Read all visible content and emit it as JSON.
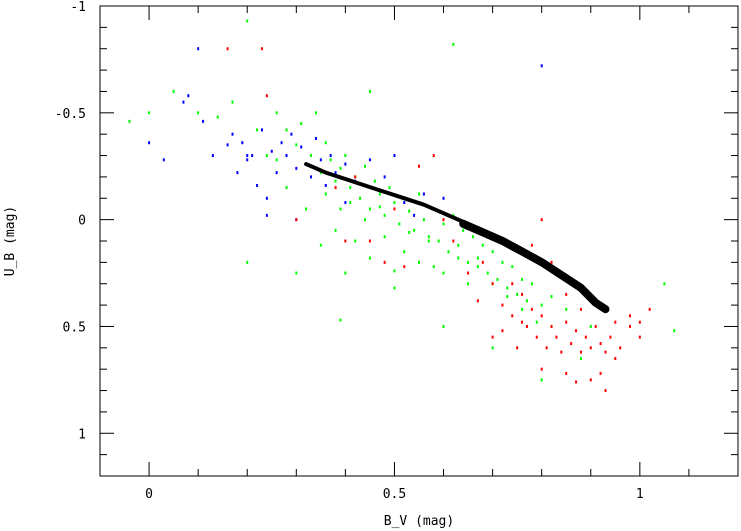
{
  "chart_data": {
    "type": "scatter",
    "title": "",
    "xlabel": "B_V (mag)",
    "ylabel": "U_B (mag)",
    "xlim": [
      -0.1,
      1.2
    ],
    "ylim": [
      1.2,
      -1.0
    ],
    "y_inverted": true,
    "grid": false,
    "x_ticks": [
      {
        "value": 0,
        "label": "0"
      },
      {
        "value": 0.5,
        "label": "0.5"
      },
      {
        "value": 1,
        "label": "1"
      }
    ],
    "y_ticks": [
      {
        "value": -1,
        "label": "-1"
      },
      {
        "value": -0.5,
        "label": "-0.5"
      },
      {
        "value": 0,
        "label": "0"
      },
      {
        "value": 0.5,
        "label": "0.5"
      },
      {
        "value": 1,
        "label": "1"
      }
    ],
    "colors": {
      "blue": "#0000ff",
      "green": "#00ff00",
      "red": "#ff0000",
      "black": "#000000"
    },
    "series": [
      {
        "color": "#00ff00",
        "points": [
          [
            -0.04,
            -0.46
          ],
          [
            0.0,
            -0.5
          ],
          [
            0.05,
            -0.6
          ],
          [
            0.1,
            -0.5
          ],
          [
            0.14,
            -0.48
          ],
          [
            0.17,
            -0.55
          ],
          [
            0.2,
            -0.93
          ],
          [
            0.22,
            -0.42
          ],
          [
            0.24,
            -0.3
          ],
          [
            0.26,
            -0.5
          ],
          [
            0.28,
            -0.42
          ],
          [
            0.3,
            -0.35
          ],
          [
            0.31,
            -0.45
          ],
          [
            0.33,
            -0.3
          ],
          [
            0.34,
            -0.5
          ],
          [
            0.35,
            -0.22
          ],
          [
            0.36,
            -0.36
          ],
          [
            0.37,
            -0.28
          ],
          [
            0.38,
            -0.18
          ],
          [
            0.39,
            -0.24
          ],
          [
            0.4,
            -0.3
          ],
          [
            0.41,
            -0.15
          ],
          [
            0.42,
            -0.2
          ],
          [
            0.43,
            -0.1
          ],
          [
            0.44,
            -0.25
          ],
          [
            0.45,
            -0.05
          ],
          [
            0.46,
            -0.18
          ],
          [
            0.47,
            -0.12
          ],
          [
            0.48,
            -0.02
          ],
          [
            0.49,
            -0.15
          ],
          [
            0.5,
            -0.08
          ],
          [
            0.51,
            0.02
          ],
          [
            0.52,
            -0.1
          ],
          [
            0.53,
            -0.04
          ],
          [
            0.54,
            0.05
          ],
          [
            0.55,
            -0.12
          ],
          [
            0.56,
            0.0
          ],
          [
            0.57,
            0.08
          ],
          [
            0.58,
            -0.05
          ],
          [
            0.59,
            0.1
          ],
          [
            0.6,
            0.02
          ],
          [
            0.61,
            0.15
          ],
          [
            0.62,
            -0.02
          ],
          [
            0.63,
            0.12
          ],
          [
            0.64,
            0.05
          ],
          [
            0.65,
            0.2
          ],
          [
            0.66,
            0.08
          ],
          [
            0.67,
            0.18
          ],
          [
            0.68,
            0.12
          ],
          [
            0.69,
            0.25
          ],
          [
            0.7,
            0.15
          ],
          [
            0.71,
            0.28
          ],
          [
            0.72,
            0.2
          ],
          [
            0.73,
            0.32
          ],
          [
            0.74,
            0.22
          ],
          [
            0.75,
            0.35
          ],
          [
            0.76,
            0.28
          ],
          [
            0.77,
            0.38
          ],
          [
            0.78,
            0.3
          ],
          [
            0.8,
            0.4
          ],
          [
            0.82,
            0.36
          ],
          [
            0.85,
            0.42
          ],
          [
            0.62,
            -0.82
          ],
          [
            0.45,
            -0.6
          ],
          [
            0.3,
            0.25
          ],
          [
            0.2,
            0.2
          ],
          [
            0.4,
            0.25
          ],
          [
            0.5,
            0.24
          ],
          [
            0.58,
            0.22
          ],
          [
            0.6,
            0.25
          ],
          [
            0.65,
            0.3
          ],
          [
            0.35,
            0.12
          ],
          [
            0.38,
            0.05
          ],
          [
            0.42,
            0.1
          ],
          [
            0.45,
            0.18
          ],
          [
            0.52,
            0.15
          ],
          [
            0.55,
            0.2
          ],
          [
            0.48,
            0.08
          ],
          [
            0.32,
            -0.05
          ],
          [
            0.28,
            -0.15
          ],
          [
            0.39,
            -0.05
          ],
          [
            0.44,
            0.0
          ],
          [
            0.36,
            -0.12
          ],
          [
            0.41,
            -0.08
          ],
          [
            0.47,
            -0.06
          ],
          [
            0.53,
            0.06
          ],
          [
            0.57,
            0.1
          ],
          [
            0.63,
            0.18
          ],
          [
            0.67,
            0.22
          ],
          [
            0.7,
            0.3
          ],
          [
            0.73,
            0.36
          ],
          [
            0.76,
            0.42
          ],
          [
            0.79,
            0.48
          ],
          [
            0.82,
            0.5
          ],
          [
            0.8,
            0.75
          ],
          [
            0.39,
            0.47
          ],
          [
            0.7,
            0.6
          ],
          [
            0.9,
            0.5
          ],
          [
            1.05,
            0.3
          ],
          [
            1.07,
            0.52
          ],
          [
            0.88,
            0.65
          ],
          [
            0.6,
            0.5
          ],
          [
            0.5,
            0.32
          ],
          [
            0.26,
            -0.28
          ]
        ]
      },
      {
        "color": "#0000ff",
        "points": [
          [
            0.0,
            -0.36
          ],
          [
            0.03,
            -0.28
          ],
          [
            0.07,
            -0.55
          ],
          [
            0.08,
            -0.58
          ],
          [
            0.1,
            -0.8
          ],
          [
            0.11,
            -0.46
          ],
          [
            0.13,
            -0.3
          ],
          [
            0.16,
            -0.35
          ],
          [
            0.17,
            -0.4
          ],
          [
            0.18,
            -0.22
          ],
          [
            0.19,
            -0.36
          ],
          [
            0.2,
            -0.28
          ],
          [
            0.21,
            -0.3
          ],
          [
            0.22,
            -0.16
          ],
          [
            0.23,
            -0.42
          ],
          [
            0.24,
            -0.1
          ],
          [
            0.25,
            -0.32
          ],
          [
            0.26,
            -0.22
          ],
          [
            0.27,
            -0.36
          ],
          [
            0.28,
            -0.3
          ],
          [
            0.29,
            -0.4
          ],
          [
            0.3,
            -0.24
          ],
          [
            0.31,
            -0.34
          ],
          [
            0.33,
            -0.2
          ],
          [
            0.34,
            -0.38
          ],
          [
            0.35,
            -0.28
          ],
          [
            0.36,
            -0.16
          ],
          [
            0.37,
            -0.3
          ],
          [
            0.38,
            -0.22
          ],
          [
            0.4,
            -0.26
          ],
          [
            0.42,
            -0.18
          ],
          [
            0.45,
            -0.28
          ],
          [
            0.48,
            -0.2
          ],
          [
            0.5,
            -0.3
          ],
          [
            0.52,
            -0.08
          ],
          [
            0.54,
            -0.02
          ],
          [
            0.56,
            -0.12
          ],
          [
            0.4,
            -0.08
          ],
          [
            0.3,
            0.0
          ],
          [
            0.24,
            -0.02
          ],
          [
            0.2,
            -0.3
          ],
          [
            0.6,
            -0.1
          ],
          [
            0.8,
            -0.72
          ]
        ]
      },
      {
        "color": "#ff0000",
        "points": [
          [
            0.16,
            -0.8
          ],
          [
            0.23,
            -0.8
          ],
          [
            0.24,
            -0.58
          ],
          [
            0.3,
            0.0
          ],
          [
            0.38,
            -0.15
          ],
          [
            0.4,
            0.1
          ],
          [
            0.42,
            -0.2
          ],
          [
            0.45,
            0.1
          ],
          [
            0.48,
            0.2
          ],
          [
            0.5,
            -0.05
          ],
          [
            0.52,
            0.22
          ],
          [
            0.55,
            -0.25
          ],
          [
            0.58,
            -0.3
          ],
          [
            0.6,
            0.0
          ],
          [
            0.62,
            0.1
          ],
          [
            0.65,
            0.25
          ],
          [
            0.67,
            0.38
          ],
          [
            0.7,
            0.3
          ],
          [
            0.72,
            0.4
          ],
          [
            0.74,
            0.45
          ],
          [
            0.76,
            0.35
          ],
          [
            0.77,
            0.5
          ],
          [
            0.78,
            0.42
          ],
          [
            0.79,
            0.55
          ],
          [
            0.8,
            0.45
          ],
          [
            0.81,
            0.6
          ],
          [
            0.82,
            0.5
          ],
          [
            0.83,
            0.55
          ],
          [
            0.84,
            0.62
          ],
          [
            0.85,
            0.48
          ],
          [
            0.86,
            0.58
          ],
          [
            0.87,
            0.52
          ],
          [
            0.88,
            0.62
          ],
          [
            0.89,
            0.55
          ],
          [
            0.9,
            0.6
          ],
          [
            0.91,
            0.5
          ],
          [
            0.92,
            0.58
          ],
          [
            0.93,
            0.62
          ],
          [
            0.94,
            0.55
          ],
          [
            0.95,
            0.48
          ],
          [
            0.96,
            0.6
          ],
          [
            0.98,
            0.5
          ],
          [
            1.0,
            0.48
          ],
          [
            1.02,
            0.42
          ],
          [
            0.7,
            0.55
          ],
          [
            0.75,
            0.6
          ],
          [
            0.8,
            0.7
          ],
          [
            0.85,
            0.72
          ],
          [
            0.9,
            0.75
          ],
          [
            0.95,
            0.65
          ],
          [
            0.78,
            0.12
          ],
          [
            0.8,
            0.0
          ],
          [
            0.82,
            0.2
          ],
          [
            0.74,
            0.3
          ],
          [
            0.68,
            0.2
          ],
          [
            0.85,
            0.35
          ],
          [
            0.88,
            0.42
          ],
          [
            0.92,
            0.72
          ],
          [
            0.98,
            0.45
          ],
          [
            1.0,
            0.55
          ],
          [
            0.76,
            0.48
          ],
          [
            0.72,
            0.52
          ],
          [
            0.87,
            0.76
          ],
          [
            0.93,
            0.8
          ]
        ]
      }
    ],
    "sequence": [
      [
        0.32,
        -0.26
      ],
      [
        0.36,
        -0.22
      ],
      [
        0.4,
        -0.19
      ],
      [
        0.44,
        -0.16
      ],
      [
        0.48,
        -0.13
      ],
      [
        0.52,
        -0.1
      ],
      [
        0.56,
        -0.07
      ],
      [
        0.6,
        -0.03
      ],
      [
        0.64,
        0.01
      ],
      [
        0.68,
        0.05
      ],
      [
        0.72,
        0.09
      ],
      [
        0.76,
        0.14
      ],
      [
        0.8,
        0.19
      ],
      [
        0.84,
        0.25
      ],
      [
        0.88,
        0.31
      ],
      [
        0.91,
        0.38
      ],
      [
        0.93,
        0.41
      ]
    ]
  }
}
